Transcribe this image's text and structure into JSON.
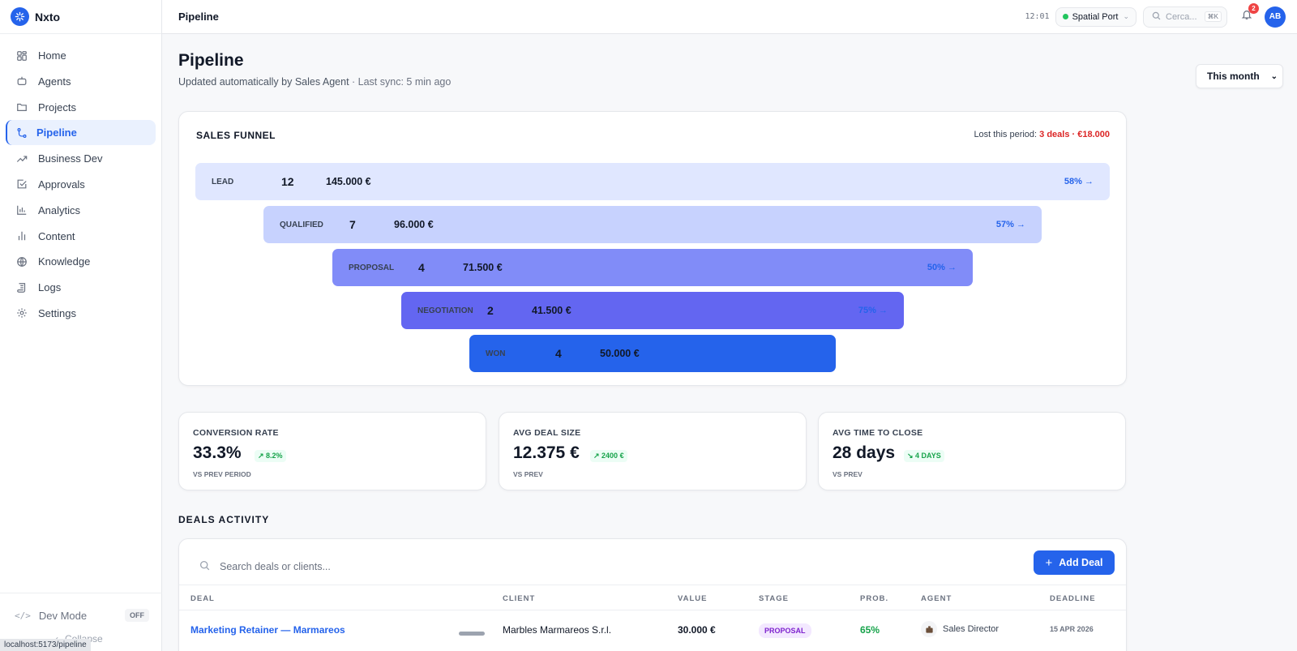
{
  "app": {
    "name": "Nxto"
  },
  "sidebar": {
    "items": [
      {
        "label": "Home",
        "icon": "home-icon"
      },
      {
        "label": "Agents",
        "icon": "robot-icon"
      },
      {
        "label": "Projects",
        "icon": "folder-icon"
      },
      {
        "label": "Pipeline",
        "icon": "pipeline-icon",
        "active": true
      },
      {
        "label": "Business Dev",
        "icon": "trend-icon"
      },
      {
        "label": "Approvals",
        "icon": "check-square-icon"
      },
      {
        "label": "Analytics",
        "icon": "bar-chart-icon"
      },
      {
        "label": "Content",
        "icon": "content-icon"
      },
      {
        "label": "Knowledge",
        "icon": "globe-icon"
      },
      {
        "label": "Logs",
        "icon": "scroll-icon"
      },
      {
        "label": "Settings",
        "icon": "gear-icon"
      }
    ],
    "dev_mode_label": "Dev Mode",
    "dev_mode_state": "OFF",
    "collapse_label": "Collapse",
    "url_hint": "localhost:5173/pipeline"
  },
  "topbar": {
    "title": "Pipeline",
    "clock": "12:01",
    "port_label": "Spatial Port",
    "search_placeholder": "Cerca...",
    "search_shortcut": "⌘K",
    "notifications_count": "2",
    "avatar_initials": "AB"
  },
  "page": {
    "title": "Pipeline",
    "subtitle_main": "Updated automatically by Sales Agent",
    "subtitle_sync": " · Last sync: 5 min ago",
    "period": "This month"
  },
  "funnel": {
    "title": "SALES FUNNEL",
    "lost_label": "Lost this period: ",
    "lost_value": "3 deals · €18.000",
    "stages": [
      {
        "name": "LEAD",
        "count": "12",
        "value": "145.000 €",
        "pct": "58% →",
        "color": "#e0e7ff"
      },
      {
        "name": "QUALIFIED",
        "count": "7",
        "value": "96.000 €",
        "pct": "57% →",
        "color": "#c7d2fe"
      },
      {
        "name": "PROPOSAL",
        "count": "4",
        "value": "71.500 €",
        "pct": "50% →",
        "color": "#818cf8"
      },
      {
        "name": "NEGOTIATION",
        "count": "2",
        "value": "41.500 €",
        "pct": "75% →",
        "color": "#6366f1"
      },
      {
        "name": "WON",
        "count": "4",
        "value": "50.000 €",
        "pct": "",
        "color": "#2563eb"
      }
    ]
  },
  "kpis": [
    {
      "label": "CONVERSION RATE",
      "value": "33.3%",
      "delta": "↗ 8.2%",
      "sub": "VS PREV PERIOD"
    },
    {
      "label": "AVG DEAL SIZE",
      "value": "12.375 €",
      "delta": "↗ 2400 €",
      "sub": "VS PREV"
    },
    {
      "label": "AVG TIME TO CLOSE",
      "value": "28 days",
      "delta": "↘ 4 DAYS",
      "sub": "VS PREV"
    }
  ],
  "deals": {
    "heading": "DEALS ACTIVITY",
    "search_placeholder": "Search deals or clients...",
    "add_label": "Add Deal",
    "columns": [
      "DEAL",
      "CLIENT",
      "VALUE",
      "STAGE",
      "PROB.",
      "AGENT",
      "DEADLINE"
    ],
    "rows": [
      {
        "deal": "Marketing Retainer — Marmareos",
        "client": "Marbles Marmareos S.r.l.",
        "value": "30.000 €",
        "stage": "PROPOSAL",
        "prob": "65%",
        "agent": "Sales Director",
        "deadline": "15 APR 2026"
      }
    ]
  },
  "colors": {
    "accent": "#2563eb",
    "danger": "#dc2626",
    "success": "#16a34a"
  }
}
